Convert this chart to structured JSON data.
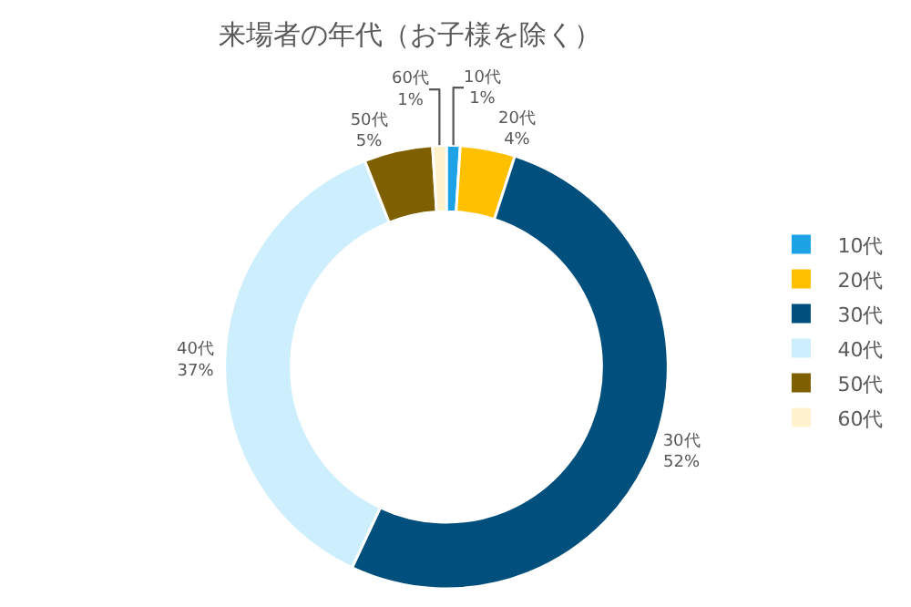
{
  "chart_data": {
    "type": "donut",
    "title": "来場者の年代（お子様を除く）",
    "categories": [
      "10代",
      "20代",
      "30代",
      "40代",
      "50代",
      "60代"
    ],
    "values": [
      1,
      4,
      52,
      37,
      5,
      1
    ],
    "colors": [
      "#1ca3e6",
      "#ffc000",
      "#004f7c",
      "#cdeefd",
      "#7f6000",
      "#fff2cc"
    ],
    "value_labels": [
      "1%",
      "4%",
      "52%",
      "37%",
      "5%",
      "1%"
    ],
    "legend": "right"
  }
}
